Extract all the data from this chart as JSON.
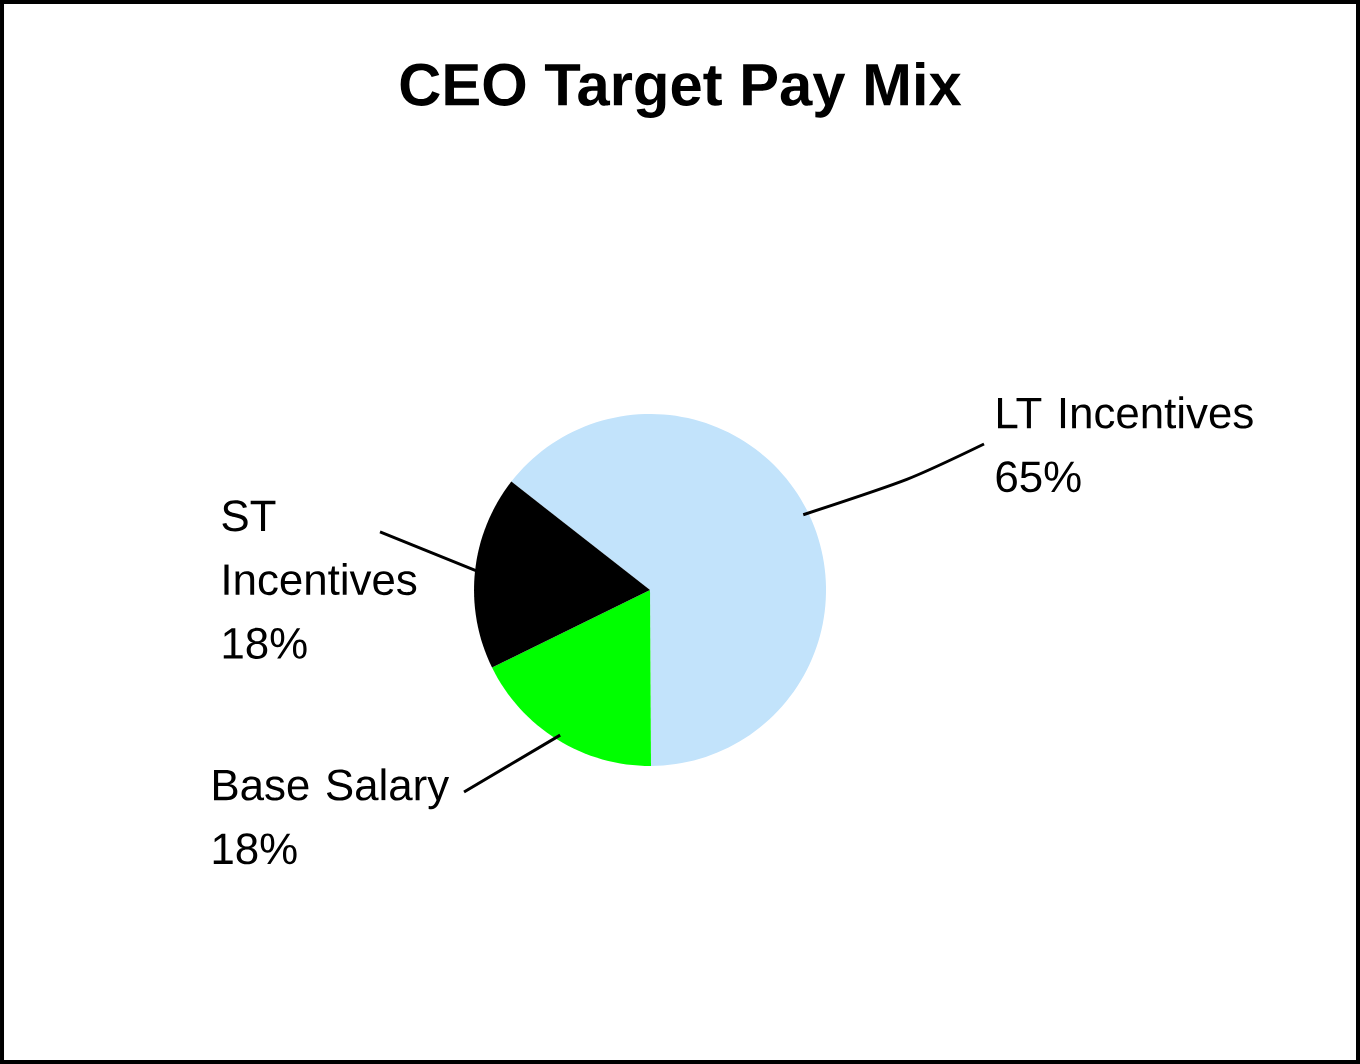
{
  "chart_data": {
    "type": "pie",
    "title": "CEO Target Pay Mix",
    "categories": [
      "LT Incentives",
      "Base Salary",
      "ST Incentives"
    ],
    "values": [
      65,
      18,
      18
    ],
    "value_labels": [
      "65%",
      "18%",
      "18%"
    ],
    "colors": [
      "#c2e3fb",
      "#00ff00",
      "#000000"
    ]
  }
}
